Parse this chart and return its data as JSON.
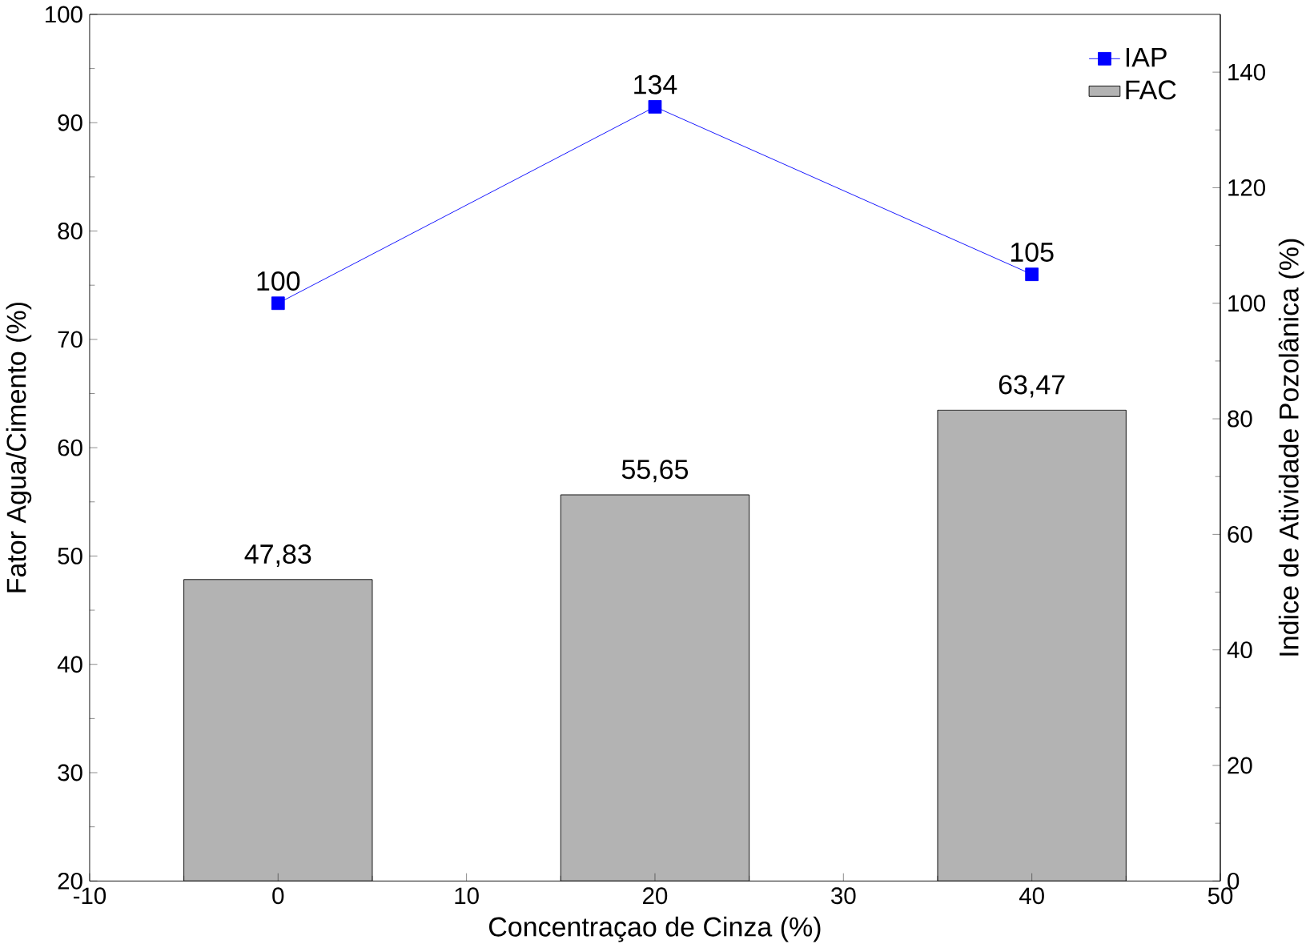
{
  "chart_data": {
    "type": "bar",
    "xlabel": "Concentraçao de Cinza (%)",
    "ylabel": "Fator Agua/Cimento (%)",
    "y2label": "Indice de Atividade Pozolânica (%)",
    "x": [
      0,
      20,
      40
    ],
    "xlim": [
      -10,
      50
    ],
    "xticks": [
      -10,
      0,
      10,
      20,
      30,
      40,
      50
    ],
    "ylim": [
      20,
      100
    ],
    "yticks": [
      20,
      30,
      40,
      50,
      60,
      70,
      80,
      90,
      100
    ],
    "y2lim": [
      0,
      150
    ],
    "y2ticks": [
      0,
      20,
      40,
      60,
      80,
      100,
      120,
      140
    ],
    "legend": "top right",
    "marker": "square",
    "series": [
      {
        "name": "IAP",
        "type": "line",
        "axis": "y2",
        "color": "#0000ff",
        "values": [
          100,
          134,
          105
        ],
        "value_labels": [
          "100",
          "134",
          "105"
        ]
      },
      {
        "name": "FAC",
        "color": "#b3b3b3",
        "values": [
          47.83,
          55.65,
          63.47
        ],
        "value_labels": [
          "47,83",
          "55,65",
          "63,47"
        ]
      }
    ]
  }
}
